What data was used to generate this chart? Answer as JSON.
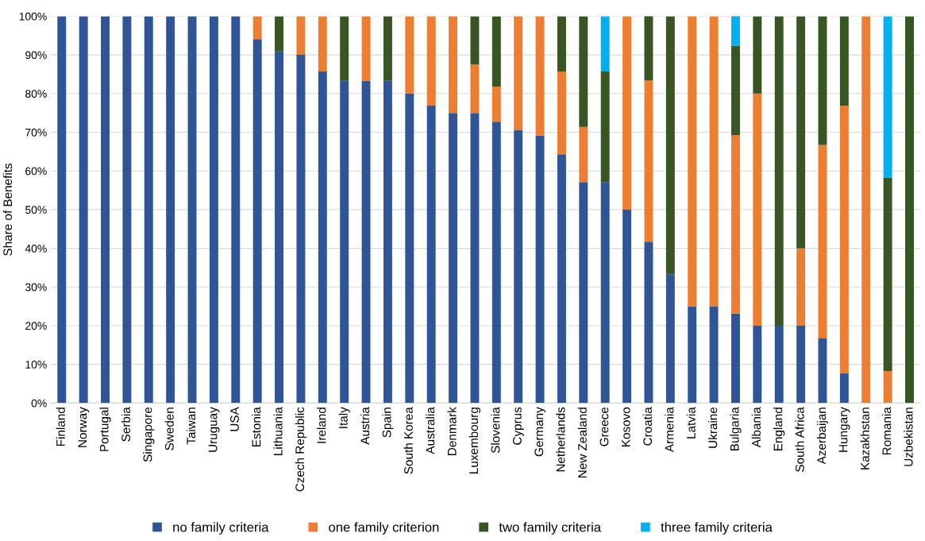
{
  "chart_data": {
    "type": "bar",
    "stacked": true,
    "ylabel": "Share of Benefits",
    "categories": [
      "Finland",
      "Norway",
      "Portugal",
      "Serbia",
      "Singapore",
      "Sweden",
      "Taiwan",
      "Uruguay",
      "USA",
      "Estonia",
      "Lithuania",
      "Czech Republic",
      "Ireland",
      "Italy",
      "Austria",
      "Spain",
      "South Korea",
      "Australia",
      "Denmark",
      "Luxembourg",
      "Slovenia",
      "Cyprus",
      "Germany",
      "Netherlands",
      "New Zealand",
      "Greece",
      "Kosovo",
      "Croatia",
      "Armenia",
      "Latvia",
      "Ukraine",
      "Bulgaria",
      "Albania",
      "England",
      "South Africa",
      "Azerbaijan",
      "Hungary",
      "Kazakhstan",
      "Romania",
      "Uzbekistan"
    ],
    "series": [
      {
        "name": "no family criteria",
        "color": "#2f5597",
        "values": [
          100,
          100,
          100,
          100,
          100,
          100,
          100,
          100,
          100,
          94.1,
          90.9,
          90,
          85.7,
          83.3,
          83.3,
          83.3,
          80,
          76.9,
          75,
          75,
          72.7,
          70.6,
          69.2,
          64.3,
          57.1,
          57.1,
          50,
          41.7,
          33.3,
          25,
          25,
          23.1,
          20,
          20,
          20,
          16.7,
          7.7,
          0,
          0,
          0
        ]
      },
      {
        "name": "one family criterion",
        "color": "#ed7d31",
        "values": [
          0,
          0,
          0,
          0,
          0,
          0,
          0,
          0,
          0,
          5.9,
          0,
          10,
          14.3,
          0,
          16.7,
          0,
          20,
          23.1,
          25,
          12.5,
          9.1,
          29.4,
          30.8,
          21.4,
          14.3,
          0,
          50,
          41.7,
          0,
          75,
          75,
          46.2,
          60,
          0,
          20,
          50,
          69.2,
          100,
          8.3,
          0
        ]
      },
      {
        "name": "two family criteria",
        "color": "#375623",
        "values": [
          0,
          0,
          0,
          0,
          0,
          0,
          0,
          0,
          0,
          0,
          9.1,
          0,
          0,
          16.7,
          0,
          16.7,
          0,
          0,
          0,
          12.5,
          18.2,
          0,
          0,
          14.3,
          28.6,
          28.6,
          0,
          16.7,
          66.7,
          0,
          0,
          23.1,
          20,
          80,
          60,
          33.3,
          23.1,
          0,
          50,
          100
        ]
      },
      {
        "name": "three family criteria",
        "color": "#00b0f0",
        "values": [
          0,
          0,
          0,
          0,
          0,
          0,
          0,
          0,
          0,
          0,
          0,
          0,
          0,
          0,
          0,
          0,
          0,
          0,
          0,
          0,
          0,
          0,
          0,
          0,
          0,
          14.3,
          0,
          0,
          0,
          0,
          0,
          7.7,
          0,
          0,
          0,
          0,
          0,
          0,
          41.7,
          0
        ]
      }
    ],
    "ylim": [
      0,
      100
    ],
    "yticks": [
      {
        "value": 0,
        "label": "0%"
      },
      {
        "value": 10,
        "label": "10%"
      },
      {
        "value": 20,
        "label": "20%"
      },
      {
        "value": 30,
        "label": "30%"
      },
      {
        "value": 40,
        "label": "40%"
      },
      {
        "value": 50,
        "label": "50%"
      },
      {
        "value": 60,
        "label": "60%"
      },
      {
        "value": 70,
        "label": "70%"
      },
      {
        "value": 80,
        "label": "80%"
      },
      {
        "value": 90,
        "label": "90%"
      },
      {
        "value": 100,
        "label": "100%"
      }
    ],
    "grid": "y",
    "legend": "bottom"
  }
}
